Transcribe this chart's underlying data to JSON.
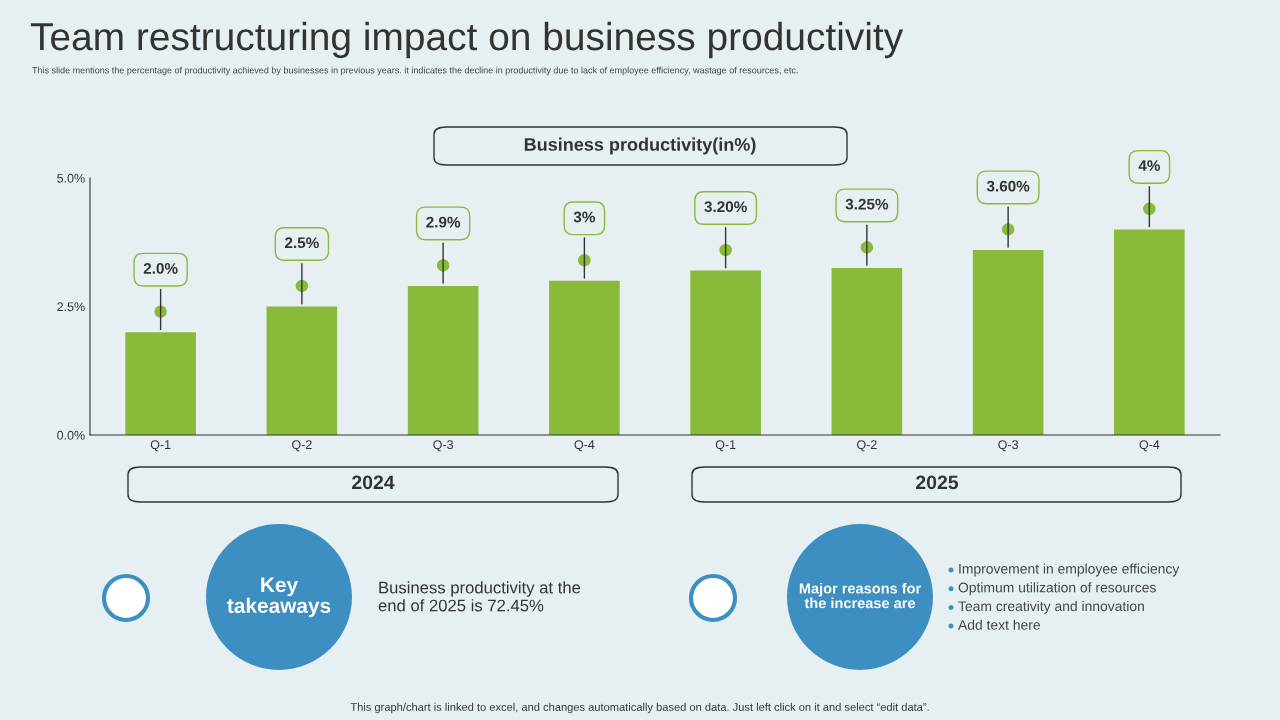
{
  "chart_data": {
    "type": "bar",
    "title": "Team restructuring impact on business productivity",
    "subtitle": "This slide mentions the percentage of productivity achieved by businesses in previous years. it indicates the decline in productivity due to lack of employee efficiency, wastage of resources, etc.",
    "categories": [
      "Q-1",
      "Q-2",
      "Q-3",
      "Q-4",
      "Q-1",
      "Q-2",
      "Q-3",
      "Q-4"
    ],
    "values": [
      2.0,
      2.5,
      2.9,
      3,
      3.2,
      3.25,
      3.6,
      4
    ],
    "value_labels": [
      "2.0%",
      "2.5%",
      "2.9%",
      "3%",
      "3.20%",
      "3.25%",
      "3.60%",
      "4%"
    ],
    "color": "#8aba3a",
    "ylim": [
      0,
      5
    ],
    "yticks": [
      {
        "value": 0,
        "label": "0.0%"
      },
      {
        "value": 2.5,
        "label": "2.5%"
      },
      {
        "value": 5,
        "label": "5.0%"
      }
    ],
    "grid": false,
    "annotations": [
      "Business productivity(in%)",
      "2024",
      "2025",
      "Key\ntakeaways",
      "Business productivity at the\nend of 2025 is 72.45%",
      "Major reasons for\nthe increase are",
      "Improvement in employee efficiency",
      "Optimum utilization of resources",
      "Team creativity and innovation",
      "Add text here",
      "This graph/chart is linked to excel, and changes automatically based on data. Just left click on it and select “edit data”."
    ]
  }
}
